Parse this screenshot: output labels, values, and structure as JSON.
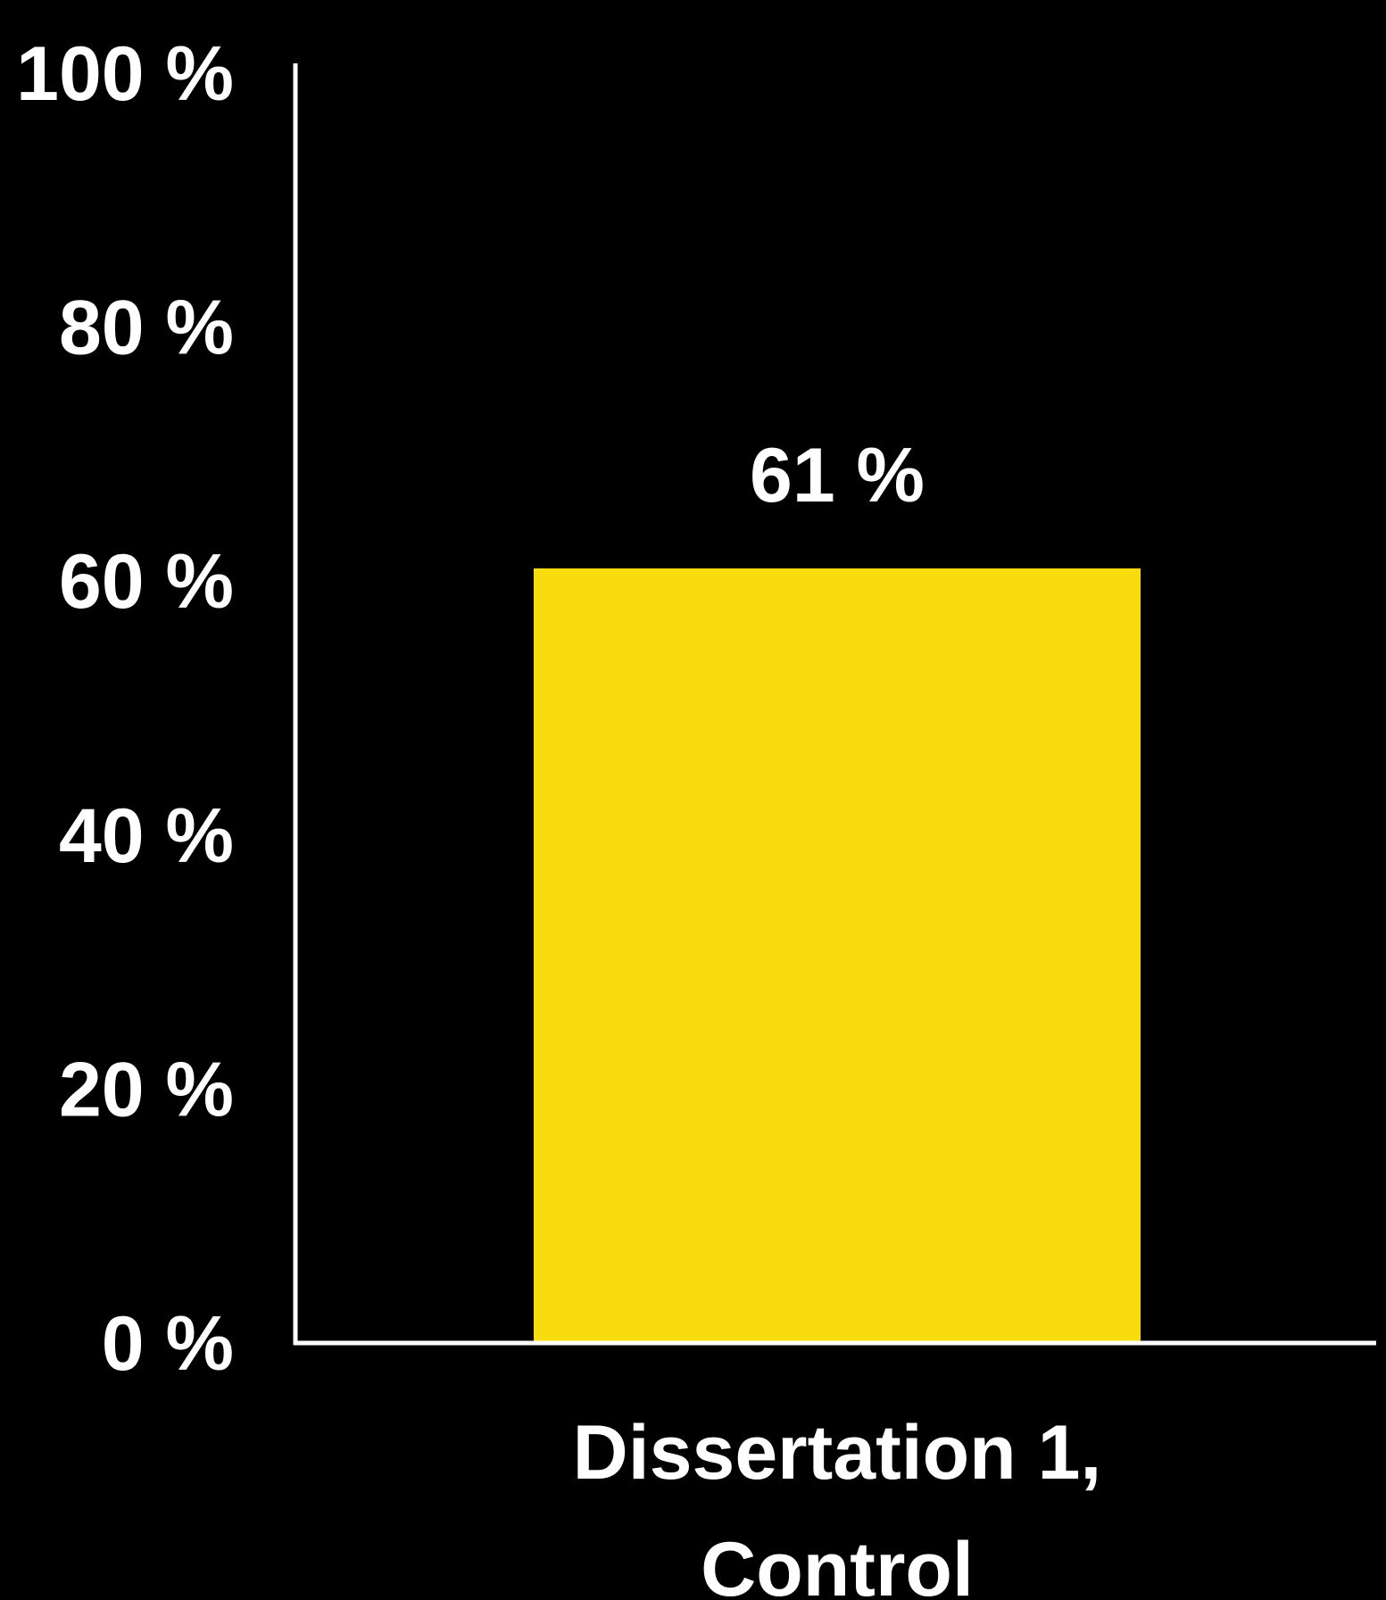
{
  "chart_data": {
    "type": "bar",
    "categories": [
      "Dissertation 1,\nControl"
    ],
    "category_lines": [
      [
        "Dissertation 1,",
        "Control"
      ]
    ],
    "values": [
      61
    ],
    "data_labels": [
      "61 %"
    ],
    "title": "",
    "xlabel": "",
    "ylabel": "",
    "ylim": [
      0,
      100
    ],
    "yticks": [
      0,
      20,
      40,
      60,
      80,
      100
    ],
    "ytick_labels": [
      "0 %",
      "20 %",
      "40 %",
      "60 %",
      "80 %",
      "100 %"
    ],
    "grid": false,
    "legend": "none",
    "colors": {
      "background": "#000000",
      "bar": "#F9DC0E",
      "axis": "#FFFFFF",
      "text": "#FFFFFF"
    }
  }
}
